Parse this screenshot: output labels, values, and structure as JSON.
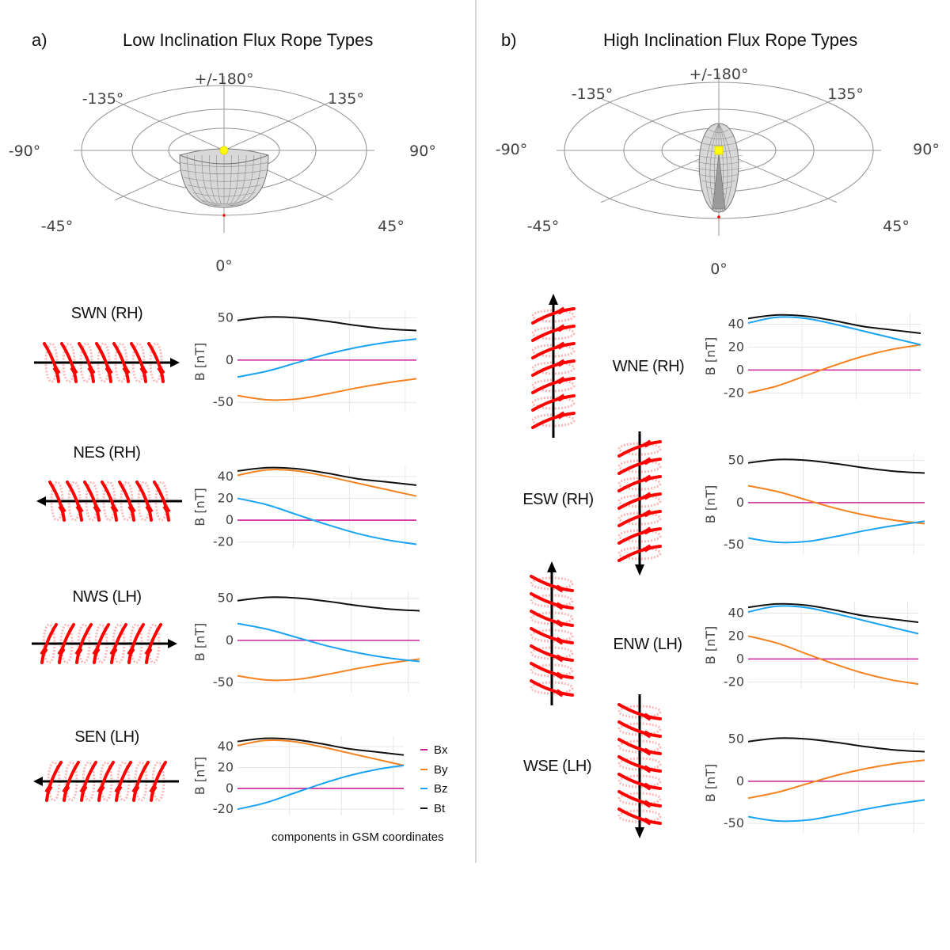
{
  "panels": [
    {
      "letter": "a)",
      "title": "Low Inclination  Flux Rope Types",
      "polar_labels": {
        "top": "+/-180°",
        "tl": "-135°",
        "tr": "135°",
        "left": "-90°",
        "right": "90°",
        "bl": "-45°",
        "br": "45°",
        "bottom": "0°"
      }
    },
    {
      "letter": "b)",
      "title": "High Inclination  Flux Rope Types",
      "polar_labels": {
        "top": "+/-180°",
        "tl": "-135°",
        "tr": "135°",
        "left": "-90°",
        "right": "90°",
        "bl": "-45°",
        "br": "45°",
        "bottom": "0°"
      }
    }
  ],
  "legend": [
    {
      "label": "Bx",
      "color": "#cc1f99"
    },
    {
      "label": "By",
      "color": "#f58220"
    },
    {
      "label": "Bz",
      "color": "#1aa3f2"
    },
    {
      "label": "Bt",
      "color": "#111111"
    }
  ],
  "coord_note": "components in GSM coordinates",
  "colors": {
    "Bx": "#cc1f99",
    "By": "#f58220",
    "Bz": "#1aa3f2",
    "Bt": "#111111",
    "rope": "#ff0000",
    "grid": "#e6e6e6",
    "polar": "#999999",
    "marker": "#ffff00"
  },
  "chart_data": [
    {
      "type": "line",
      "label": "SWN (RH)",
      "ylabel": "B [nT]",
      "yticks": [
        50,
        0,
        -50
      ],
      "ylim": [
        -62,
        58
      ],
      "series": [
        {
          "name": "Bx",
          "values": [
            0,
            0,
            0,
            0,
            0,
            0,
            0
          ]
        },
        {
          "name": "By",
          "values": [
            -42,
            -47,
            -46,
            -40,
            -33,
            -27,
            -22
          ]
        },
        {
          "name": "Bz",
          "values": [
            -20,
            -13,
            -3,
            7,
            15,
            21,
            25
          ]
        },
        {
          "name": "Bt",
          "values": [
            47,
            51,
            50,
            46,
            41,
            37,
            35
          ]
        }
      ]
    },
    {
      "type": "line",
      "label": "NES (RH)",
      "ylabel": "B [nT]",
      "yticks": [
        40,
        20,
        0,
        -20
      ],
      "ylim": [
        -26,
        50
      ],
      "series": [
        {
          "name": "Bx",
          "values": [
            0,
            0,
            0,
            0,
            0,
            0,
            0
          ]
        },
        {
          "name": "By",
          "values": [
            41,
            46,
            45,
            40,
            34,
            28,
            22
          ]
        },
        {
          "name": "Bz",
          "values": [
            20,
            14,
            5,
            -4,
            -12,
            -18,
            -22
          ]
        },
        {
          "name": "Bt",
          "values": [
            45,
            48,
            47,
            43,
            38,
            35,
            32
          ]
        }
      ]
    },
    {
      "type": "line",
      "label": "NWS (LH)",
      "ylabel": "B [nT]",
      "yticks": [
        50,
        0,
        -50
      ],
      "ylim": [
        -62,
        58
      ],
      "series": [
        {
          "name": "Bx",
          "values": [
            0,
            0,
            0,
            0,
            0,
            0,
            0
          ]
        },
        {
          "name": "By",
          "values": [
            -42,
            -47,
            -46,
            -40,
            -33,
            -27,
            -22
          ]
        },
        {
          "name": "Bz",
          "values": [
            20,
            13,
            3,
            -7,
            -15,
            -21,
            -25
          ]
        },
        {
          "name": "Bt",
          "values": [
            47,
            51,
            50,
            46,
            41,
            37,
            35
          ]
        }
      ]
    },
    {
      "type": "line",
      "label": "SEN (LH)",
      "ylabel": "B [nT]",
      "yticks": [
        40,
        20,
        0,
        -20
      ],
      "ylim": [
        -26,
        50
      ],
      "series": [
        {
          "name": "Bx",
          "values": [
            0,
            0,
            0,
            0,
            0,
            0,
            0
          ]
        },
        {
          "name": "By",
          "values": [
            41,
            46,
            45,
            40,
            34,
            28,
            22
          ]
        },
        {
          "name": "Bz",
          "values": [
            -20,
            -14,
            -5,
            4,
            12,
            18,
            22
          ]
        },
        {
          "name": "Bt",
          "values": [
            45,
            48,
            47,
            43,
            38,
            35,
            32
          ]
        }
      ]
    },
    {
      "type": "line",
      "label": "WNE (RH)",
      "ylabel": "B [nT]",
      "yticks": [
        40,
        20,
        0,
        -20
      ],
      "ylim": [
        -26,
        50
      ],
      "series": [
        {
          "name": "Bx",
          "values": [
            0,
            0,
            0,
            0,
            0,
            0,
            0
          ]
        },
        {
          "name": "By",
          "values": [
            -20,
            -14,
            -5,
            4,
            12,
            18,
            22
          ]
        },
        {
          "name": "Bz",
          "values": [
            41,
            46,
            45,
            40,
            34,
            28,
            22
          ]
        },
        {
          "name": "Bt",
          "values": [
            45,
            48,
            47,
            43,
            38,
            35,
            32
          ]
        }
      ]
    },
    {
      "type": "line",
      "label": "ESW (RH)",
      "ylabel": "B [nT]",
      "yticks": [
        50,
        0,
        -50
      ],
      "ylim": [
        -62,
        58
      ],
      "series": [
        {
          "name": "Bx",
          "values": [
            0,
            0,
            0,
            0,
            0,
            0,
            0
          ]
        },
        {
          "name": "By",
          "values": [
            20,
            13,
            3,
            -7,
            -15,
            -21,
            -25
          ]
        },
        {
          "name": "Bz",
          "values": [
            -42,
            -47,
            -46,
            -40,
            -33,
            -27,
            -22
          ]
        },
        {
          "name": "Bt",
          "values": [
            47,
            51,
            50,
            46,
            41,
            37,
            35
          ]
        }
      ]
    },
    {
      "type": "line",
      "label": "ENW (LH)",
      "ylabel": "B [nT]",
      "yticks": [
        40,
        20,
        0,
        -20
      ],
      "ylim": [
        -26,
        50
      ],
      "series": [
        {
          "name": "Bx",
          "values": [
            0,
            0,
            0,
            0,
            0,
            0,
            0
          ]
        },
        {
          "name": "By",
          "values": [
            20,
            14,
            5,
            -4,
            -12,
            -18,
            -22
          ]
        },
        {
          "name": "Bz",
          "values": [
            41,
            46,
            45,
            40,
            34,
            28,
            22
          ]
        },
        {
          "name": "Bt",
          "values": [
            45,
            48,
            47,
            43,
            38,
            35,
            32
          ]
        }
      ]
    },
    {
      "type": "line",
      "label": "WSE (LH)",
      "ylabel": "B [nT]",
      "yticks": [
        50,
        0,
        -50
      ],
      "ylim": [
        -62,
        58
      ],
      "series": [
        {
          "name": "Bx",
          "values": [
            0,
            0,
            0,
            0,
            0,
            0,
            0
          ]
        },
        {
          "name": "By",
          "values": [
            -20,
            -13,
            -3,
            7,
            15,
            21,
            25
          ]
        },
        {
          "name": "Bz",
          "values": [
            -42,
            -47,
            -46,
            -40,
            -33,
            -27,
            -22
          ]
        },
        {
          "name": "Bt",
          "values": [
            47,
            51,
            50,
            46,
            41,
            37,
            35
          ]
        }
      ]
    }
  ]
}
